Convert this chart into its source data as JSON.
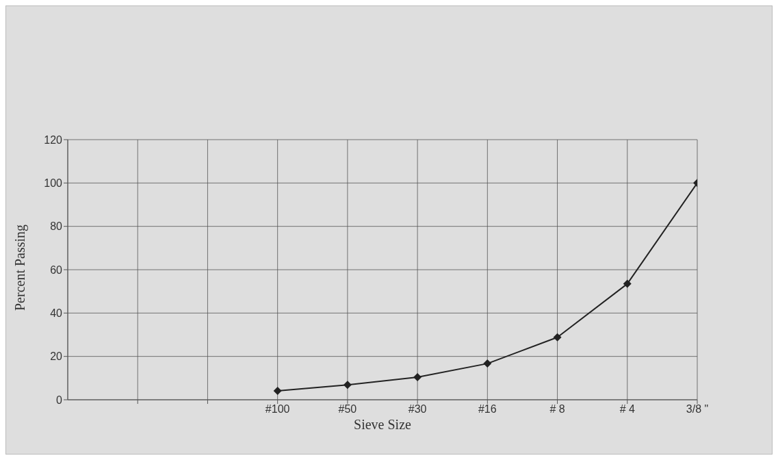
{
  "chart_data": {
    "type": "line",
    "xlabel": "Sieve Size",
    "ylabel": "Percent Passing",
    "categories": [
      null,
      null,
      "#100",
      "#50",
      "#30",
      "#16",
      "# 8",
      "# 4",
      "3/8 \""
    ],
    "values": [
      null,
      null,
      4.1,
      6.9,
      10.4,
      16.7,
      28.8,
      53.5,
      100
    ],
    "color": "#222222",
    "marker": "diamond",
    "line_style": "solid",
    "grid": true,
    "ylim": [
      0,
      120
    ],
    "yticks": [
      0,
      20,
      40,
      60,
      80,
      100,
      120
    ]
  }
}
